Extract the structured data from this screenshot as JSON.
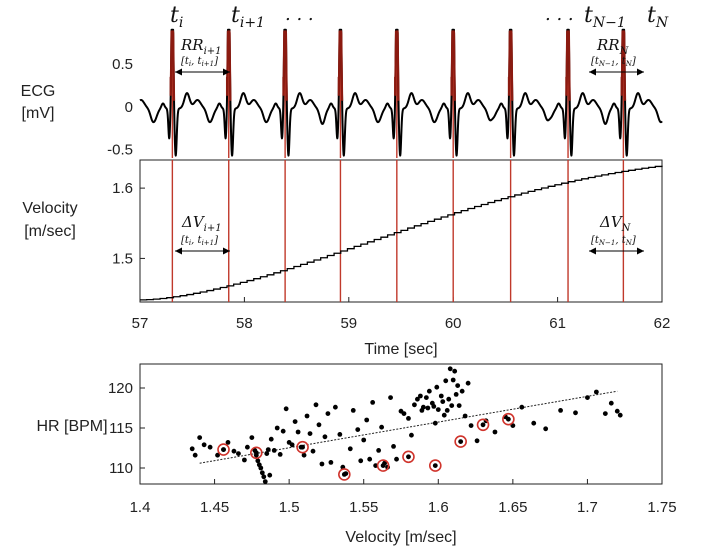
{
  "chart_data": [
    {
      "type": "line",
      "panel": "ecg",
      "ylabel_line1": "ECG",
      "ylabel_line2": "[mV]",
      "ylim": [
        -0.62,
        0.92
      ],
      "yticks": [
        0.5,
        0,
        -0.5
      ],
      "ytick_labels": [
        "0.5",
        "0",
        "-0.5"
      ],
      "xlim": [
        57,
        62
      ],
      "r_peaks": [
        57.31,
        57.85,
        58.39,
        58.92,
        59.46,
        60.0,
        60.55,
        61.1,
        61.63
      ],
      "series": [
        {
          "name": "ECG",
          "color": "#000000",
          "peak_color": "#c0392b"
        }
      ],
      "annotations": {
        "t_i": {
          "base": "t",
          "sub": "i"
        },
        "t_i1": {
          "base": "t",
          "sub": "i+1"
        },
        "dots_left": ". . .",
        "dots_right": ". . .",
        "t_N1": {
          "base": "t",
          "sub": "N−1"
        },
        "t_N": {
          "base": "t",
          "sub": "N"
        },
        "rr_first": {
          "base": "RR",
          "sub": "i+1",
          "interval": "[t",
          "interval_a": "i",
          "interval_mid": ", t",
          "interval_b": "i+1",
          "interval_end": "]"
        },
        "rr_last": {
          "base": "RR",
          "sub": "N",
          "interval": "[t",
          "interval_a": "N−1",
          "interval_mid": ", t",
          "interval_b": "N",
          "interval_end": "]"
        }
      }
    },
    {
      "type": "step",
      "panel": "velocity",
      "ylabel_line1": "Velocity",
      "ylabel_line2": "[m/sec]",
      "xlabel": "Time [sec]",
      "xlim": [
        57,
        62
      ],
      "ylim": [
        1.438,
        1.64
      ],
      "xticks": [
        57,
        58,
        59,
        60,
        61,
        62
      ],
      "xtick_labels": [
        "57",
        "58",
        "59",
        "60",
        "61",
        "62"
      ],
      "yticks": [
        1.6,
        1.5
      ],
      "ytick_labels": [
        "1.6",
        "1.5"
      ],
      "start_value": 1.441,
      "end_value": 1.632,
      "annotations": {
        "dv_first": {
          "base": "ΔV",
          "sub": "i+1",
          "interval": "[t",
          "interval_a": "i",
          "interval_mid": ", t",
          "interval_b": "i+1",
          "interval_end": "]"
        },
        "dv_last": {
          "base": "ΔV",
          "sub": "N",
          "interval": "[t",
          "interval_a": "N−1",
          "interval_mid": ", t",
          "interval_b": "N",
          "interval_end": "]"
        }
      }
    },
    {
      "type": "scatter",
      "panel": "hr",
      "ylabel": "HR [BPM]",
      "xlabel": "Velocity [m/sec]",
      "xlim": [
        1.4,
        1.75
      ],
      "ylim": [
        108,
        123
      ],
      "xticks": [
        1.4,
        1.45,
        1.5,
        1.55,
        1.6,
        1.65,
        1.7,
        1.75
      ],
      "xtick_labels": [
        "1.4",
        "1.45",
        "1.5",
        "1.55",
        "1.6",
        "1.65",
        "1.7",
        "1.75"
      ],
      "yticks": [
        110,
        115,
        120
      ],
      "ytick_labels": [
        "110",
        "115",
        "120"
      ],
      "trend": {
        "x": [
          1.44,
          1.72
        ],
        "y": [
          110.6,
          119.6
        ]
      },
      "points": [
        [
          1.435,
          112.4
        ],
        [
          1.437,
          111.6
        ],
        [
          1.44,
          113.8
        ],
        [
          1.443,
          112.9
        ],
        [
          1.447,
          112.6
        ],
        [
          1.452,
          111.6
        ],
        [
          1.456,
          112.3
        ],
        [
          1.459,
          113.2
        ],
        [
          1.463,
          112.1
        ],
        [
          1.466,
          111.8
        ],
        [
          1.47,
          111.0
        ],
        [
          1.472,
          112.6
        ],
        [
          1.475,
          113.8
        ],
        [
          1.477,
          112.2
        ],
        [
          1.478,
          111.6
        ],
        [
          1.479,
          110.9
        ],
        [
          1.48,
          110.4
        ],
        [
          1.481,
          110.0
        ],
        [
          1.482,
          109.4
        ],
        [
          1.483,
          108.9
        ],
        [
          1.484,
          108.3
        ],
        [
          1.485,
          111.8
        ],
        [
          1.486,
          112.3
        ],
        [
          1.487,
          109.1
        ],
        [
          1.488,
          113.6
        ],
        [
          1.49,
          112.2
        ],
        [
          1.492,
          115.0
        ],
        [
          1.494,
          111.7
        ],
        [
          1.496,
          114.6
        ],
        [
          1.498,
          117.4
        ],
        [
          1.5,
          113.2
        ],
        [
          1.502,
          112.9
        ],
        [
          1.504,
          115.8
        ],
        [
          1.506,
          114.5
        ],
        [
          1.508,
          112.6
        ],
        [
          1.51,
          111.6
        ],
        [
          1.512,
          116.5
        ],
        [
          1.514,
          114.3
        ],
        [
          1.516,
          112.1
        ],
        [
          1.518,
          117.9
        ],
        [
          1.52,
          115.4
        ],
        [
          1.522,
          110.5
        ],
        [
          1.524,
          113.9
        ],
        [
          1.526,
          116.8
        ],
        [
          1.528,
          110.7
        ],
        [
          1.531,
          117.6
        ],
        [
          1.534,
          114.2
        ],
        [
          1.536,
          110.1
        ],
        [
          1.538,
          109.3
        ],
        [
          1.541,
          112.4
        ],
        [
          1.543,
          117.2
        ],
        [
          1.546,
          114.8
        ],
        [
          1.548,
          110.9
        ],
        [
          1.55,
          113.5
        ],
        [
          1.552,
          116.0
        ],
        [
          1.554,
          111.1
        ],
        [
          1.556,
          118.2
        ],
        [
          1.558,
          110.3
        ],
        [
          1.56,
          112.2
        ],
        [
          1.562,
          115.1
        ],
        [
          1.564,
          110.6
        ],
        [
          1.566,
          110.1
        ],
        [
          1.568,
          118.8
        ],
        [
          1.57,
          112.7
        ],
        [
          1.572,
          111.1
        ],
        [
          1.575,
          117.1
        ],
        [
          1.577,
          116.8
        ],
        [
          1.58,
          116.2
        ],
        [
          1.582,
          114.1
        ],
        [
          1.584,
          117.9
        ],
        [
          1.586,
          118.6
        ],
        [
          1.588,
          119.0
        ],
        [
          1.589,
          117.2
        ],
        [
          1.59,
          117.6
        ],
        [
          1.592,
          118.8
        ],
        [
          1.593,
          117.5
        ],
        [
          1.594,
          119.6
        ],
        [
          1.596,
          118.1
        ],
        [
          1.597,
          117.7
        ],
        [
          1.598,
          115.6
        ],
        [
          1.599,
          120.1
        ],
        [
          1.6,
          117.3
        ],
        [
          1.602,
          119.0
        ],
        [
          1.603,
          118.3
        ],
        [
          1.604,
          116.6
        ],
        [
          1.605,
          120.9
        ],
        [
          1.606,
          117.2
        ],
        [
          1.607,
          118.6
        ],
        [
          1.608,
          122.4
        ],
        [
          1.609,
          117.8
        ],
        [
          1.61,
          121.0
        ],
        [
          1.611,
          122.1
        ],
        [
          1.612,
          119.2
        ],
        [
          1.613,
          120.3
        ],
        [
          1.614,
          117.8
        ],
        [
          1.616,
          119.6
        ],
        [
          1.618,
          116.5
        ],
        [
          1.62,
          120.6
        ],
        [
          1.622,
          115.3
        ],
        [
          1.626,
          113.4
        ],
        [
          1.632,
          115.9
        ],
        [
          1.638,
          114.5
        ],
        [
          1.645,
          116.4
        ],
        [
          1.65,
          115.3
        ],
        [
          1.656,
          117.6
        ],
        [
          1.664,
          115.6
        ],
        [
          1.672,
          114.9
        ],
        [
          1.682,
          117.2
        ],
        [
          1.692,
          116.9
        ],
        [
          1.7,
          118.8
        ],
        [
          1.706,
          119.5
        ],
        [
          1.712,
          116.8
        ],
        [
          1.716,
          118.1
        ],
        [
          1.72,
          117.1
        ],
        [
          1.722,
          116.6
        ]
      ],
      "circled_points": [
        [
          1.456,
          112.3
        ],
        [
          1.478,
          111.9
        ],
        [
          1.509,
          112.6
        ],
        [
          1.537,
          109.2
        ],
        [
          1.563,
          110.3
        ],
        [
          1.58,
          111.4
        ],
        [
          1.598,
          110.3
        ],
        [
          1.615,
          113.3
        ],
        [
          1.63,
          115.4
        ],
        [
          1.647,
          116.1
        ]
      ]
    }
  ]
}
